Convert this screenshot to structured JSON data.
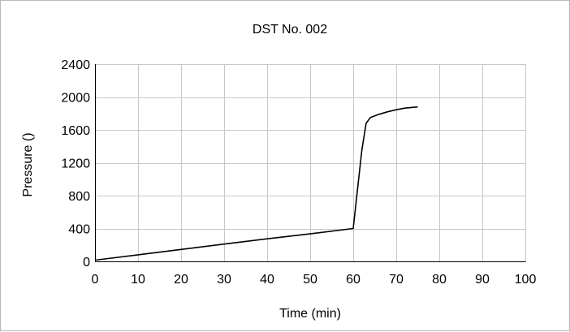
{
  "chart_data": {
    "type": "line",
    "title": "DST No. 002",
    "xlabel": "Time (min)",
    "ylabel": "Pressure ()",
    "xlim": [
      0,
      100
    ],
    "ylim": [
      0,
      2400
    ],
    "xticks": [
      0,
      10,
      20,
      30,
      40,
      50,
      60,
      70,
      80,
      90,
      100
    ],
    "yticks": [
      0,
      400,
      800,
      1200,
      1600,
      2000,
      2400
    ],
    "grid": true,
    "legend": "none",
    "series": [
      {
        "color": "#000000",
        "x": [
          0,
          10,
          20,
          30,
          40,
          50,
          60,
          62,
          63,
          64,
          66,
          68,
          70,
          72,
          75
        ],
        "y": [
          15,
          80,
          145,
          210,
          275,
          335,
          400,
          1350,
          1680,
          1750,
          1790,
          1820,
          1845,
          1865,
          1880
        ]
      }
    ]
  }
}
